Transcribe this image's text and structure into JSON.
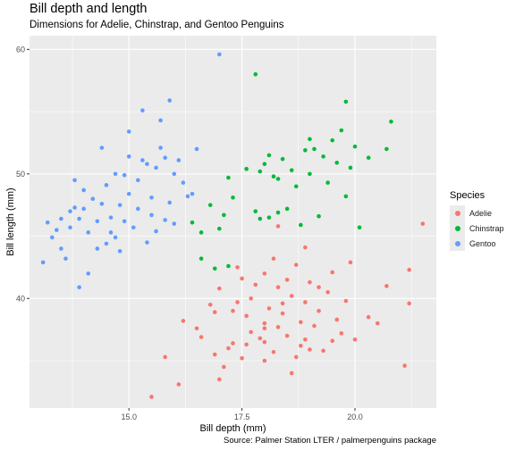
{
  "chart_data": {
    "type": "scatter",
    "title": "Bill depth and length",
    "subtitle": "Dimensions for Adelie, Chinstrap, and Gentoo Penguins",
    "caption": "Source: Palmer Station LTER / palmerpenguins package",
    "xlabel": "Bill depth (mm)",
    "ylabel": "Bill length (mm)",
    "xlim": [
      12.8,
      21.8
    ],
    "ylim": [
      31.2,
      61.1
    ],
    "xticks": [
      15.0,
      17.5,
      20.0
    ],
    "xtick_labels": [
      "15.0",
      "17.5",
      "20.0"
    ],
    "yticks": [
      40,
      50,
      60
    ],
    "ytick_labels": [
      "40",
      "50",
      "60"
    ],
    "grid": true,
    "legend": {
      "title": "Species",
      "position": "right"
    },
    "series": [
      {
        "name": "Adelie",
        "color": "#F8766D",
        "points": [
          [
            15.5,
            32.1
          ],
          [
            16.1,
            33.1
          ],
          [
            17.0,
            33.5
          ],
          [
            17.1,
            34.5
          ],
          [
            18.6,
            34.0
          ],
          [
            21.1,
            34.6
          ],
          [
            18.0,
            35.0
          ],
          [
            17.5,
            35.2
          ],
          [
            18.7,
            35.3
          ],
          [
            16.9,
            35.5
          ],
          [
            19.3,
            35.8
          ],
          [
            18.2,
            35.7
          ],
          [
            19.0,
            35.9
          ],
          [
            17.2,
            36.0
          ],
          [
            18.8,
            36.2
          ],
          [
            17.3,
            36.4
          ],
          [
            18.0,
            36.5
          ],
          [
            19.5,
            36.6
          ],
          [
            20.0,
            36.7
          ],
          [
            17.9,
            36.8
          ],
          [
            18.5,
            37.0
          ],
          [
            17.7,
            37.3
          ],
          [
            16.5,
            37.6
          ],
          [
            18.3,
            37.7
          ],
          [
            19.1,
            37.8
          ],
          [
            18.0,
            38.0
          ],
          [
            16.2,
            38.2
          ],
          [
            18.8,
            38.1
          ],
          [
            19.6,
            38.3
          ],
          [
            17.6,
            38.6
          ],
          [
            20.3,
            38.5
          ],
          [
            18.4,
            38.8
          ],
          [
            17.3,
            39.0
          ],
          [
            19.2,
            39.0
          ],
          [
            18.1,
            39.2
          ],
          [
            16.8,
            39.5
          ],
          [
            21.2,
            39.6
          ],
          [
            18.9,
            39.7
          ],
          [
            19.8,
            39.8
          ],
          [
            17.7,
            40.0
          ],
          [
            18.6,
            40.2
          ],
          [
            19.4,
            40.5
          ],
          [
            17.0,
            40.8
          ],
          [
            18.3,
            40.9
          ],
          [
            20.7,
            41.0
          ],
          [
            17.8,
            41.1
          ],
          [
            19.0,
            41.3
          ],
          [
            18.5,
            41.5
          ],
          [
            18.0,
            42.0
          ],
          [
            19.5,
            42.1
          ],
          [
            21.2,
            42.3
          ],
          [
            17.4,
            42.5
          ],
          [
            18.7,
            42.7
          ],
          [
            18.2,
            43.2
          ],
          [
            19.9,
            42.9
          ],
          [
            18.9,
            44.1
          ],
          [
            18.3,
            45.8
          ],
          [
            21.5,
            46.0
          ],
          [
            17.6,
            36.3
          ],
          [
            16.6,
            36.9
          ],
          [
            15.8,
            35.3
          ],
          [
            19.7,
            37.2
          ],
          [
            20.5,
            38.0
          ],
          [
            17.5,
            41.6
          ],
          [
            18.4,
            39.6
          ],
          [
            16.9,
            38.9
          ],
          [
            18.9,
            36.7
          ],
          [
            19.2,
            40.9
          ],
          [
            18.0,
            37.6
          ],
          [
            17.4,
            39.7
          ]
        ]
      },
      {
        "name": "Chinstrap",
        "color": "#00BA38",
        "points": [
          [
            16.6,
            43.2
          ],
          [
            16.4,
            46.1
          ],
          [
            16.8,
            47.5
          ],
          [
            16.6,
            45.3
          ],
          [
            17.0,
            45.6
          ],
          [
            16.9,
            42.4
          ],
          [
            17.3,
            48.1
          ],
          [
            17.1,
            46.7
          ],
          [
            17.9,
            46.4
          ],
          [
            17.8,
            47.0
          ],
          [
            18.3,
            46.9
          ],
          [
            17.2,
            49.7
          ],
          [
            17.9,
            50.2
          ],
          [
            18.0,
            50.8
          ],
          [
            18.1,
            51.5
          ],
          [
            18.4,
            51.2
          ],
          [
            18.6,
            50.3
          ],
          [
            18.2,
            49.8
          ],
          [
            18.9,
            51.9
          ],
          [
            19.1,
            52.0
          ],
          [
            19.3,
            51.4
          ],
          [
            19.5,
            52.7
          ],
          [
            19.6,
            50.9
          ],
          [
            19.9,
            50.5
          ],
          [
            20.3,
            51.3
          ],
          [
            19.7,
            53.5
          ],
          [
            19.8,
            55.8
          ],
          [
            20.8,
            54.2
          ],
          [
            19.0,
            50.0
          ],
          [
            18.7,
            49.0
          ],
          [
            19.4,
            49.3
          ],
          [
            19.2,
            46.6
          ],
          [
            19.8,
            48.2
          ],
          [
            17.6,
            50.4
          ],
          [
            18.8,
            45.9
          ],
          [
            17.8,
            58.0
          ],
          [
            20.0,
            52.2
          ],
          [
            20.7,
            52.0
          ],
          [
            18.5,
            47.2
          ],
          [
            18.1,
            46.5
          ],
          [
            17.2,
            42.6
          ],
          [
            18.3,
            49.6
          ],
          [
            19.0,
            52.8
          ],
          [
            20.1,
            45.7
          ]
        ]
      },
      {
        "name": "Gentoo",
        "color": "#619CFF",
        "points": [
          [
            13.1,
            42.9
          ],
          [
            13.2,
            46.1
          ],
          [
            13.3,
            44.9
          ],
          [
            13.4,
            45.5
          ],
          [
            13.5,
            46.4
          ],
          [
            13.7,
            47.0
          ],
          [
            13.8,
            47.3
          ],
          [
            13.9,
            46.4
          ],
          [
            14.0,
            48.7
          ],
          [
            14.1,
            45.3
          ],
          [
            14.2,
            48.0
          ],
          [
            14.3,
            46.2
          ],
          [
            14.4,
            47.6
          ],
          [
            14.5,
            49.1
          ],
          [
            14.6,
            46.5
          ],
          [
            14.7,
            50.0
          ],
          [
            14.8,
            47.5
          ],
          [
            14.9,
            49.9
          ],
          [
            15.0,
            48.4
          ],
          [
            15.1,
            45.7
          ],
          [
            15.2,
            49.5
          ],
          [
            15.3,
            51.1
          ],
          [
            15.4,
            50.8
          ],
          [
            15.5,
            48.1
          ],
          [
            15.6,
            50.5
          ],
          [
            15.7,
            52.1
          ],
          [
            15.8,
            51.3
          ],
          [
            15.9,
            47.7
          ],
          [
            16.0,
            50.0
          ],
          [
            16.1,
            51.1
          ],
          [
            16.2,
            49.3
          ],
          [
            16.3,
            48.2
          ],
          [
            15.0,
            53.4
          ],
          [
            15.3,
            55.1
          ],
          [
            15.7,
            54.3
          ],
          [
            15.9,
            55.9
          ],
          [
            14.4,
            52.1
          ],
          [
            13.8,
            49.5
          ],
          [
            14.5,
            44.4
          ],
          [
            13.6,
            43.2
          ],
          [
            14.1,
            42.0
          ],
          [
            13.9,
            40.9
          ],
          [
            14.3,
            44.0
          ],
          [
            16.0,
            46.0
          ],
          [
            15.5,
            46.7
          ],
          [
            14.8,
            43.8
          ],
          [
            15.4,
            44.5
          ],
          [
            17.0,
            59.6
          ],
          [
            16.5,
            52.0
          ],
          [
            15.8,
            46.3
          ],
          [
            14.6,
            45.3
          ],
          [
            15.2,
            47.2
          ],
          [
            13.7,
            45.7
          ],
          [
            14.9,
            46.2
          ],
          [
            15.0,
            51.4
          ],
          [
            15.6,
            45.4
          ],
          [
            14.0,
            47.2
          ],
          [
            13.5,
            44.0
          ],
          [
            16.4,
            48.4
          ],
          [
            14.7,
            44.9
          ]
        ]
      }
    ]
  }
}
